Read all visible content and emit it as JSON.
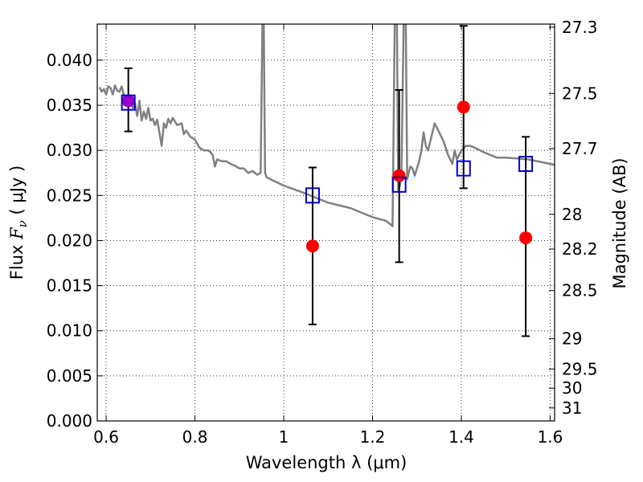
{
  "chart_data": {
    "type": "scatter",
    "xlabel": "Wavelength  λ (μm)",
    "ylabel": "Flux  F_ν  ( μJy )",
    "ylabel_parts": {
      "prefix": "Flux  ",
      "symbol": "F",
      "subscript": "ν",
      "suffix": "  ( μJy )"
    },
    "y2label": "Magnitude (AB)",
    "xlim": [
      0.58,
      1.61
    ],
    "ylim": [
      0.0,
      0.044
    ],
    "x_ticks": [
      0.6,
      0.8,
      1.0,
      1.2,
      1.4,
      1.6
    ],
    "x_tick_labels": [
      "0.6",
      "0.8",
      "1",
      "1.2",
      "1.4",
      "1.6"
    ],
    "y_ticks": [
      0.0,
      0.005,
      0.01,
      0.015,
      0.02,
      0.025,
      0.03,
      0.035,
      0.04
    ],
    "y_tick_labels": [
      "0.000",
      "0.005",
      "0.010",
      "0.015",
      "0.020",
      "0.025",
      "0.030",
      "0.035",
      "0.040"
    ],
    "y2_ticks": [
      27.3,
      27.5,
      27.7,
      28.0,
      28.2,
      28.5,
      29.0,
      29.5,
      30.0,
      31.0
    ],
    "y2_tick_labels": [
      "27.3",
      "27.5",
      "27.7",
      "28",
      "28.2",
      "28.5",
      "29",
      "29.5",
      "30",
      "31"
    ],
    "grid": true,
    "colors": {
      "spectrum": "#808080",
      "observed": "#ff0000",
      "model": "#0000cc",
      "overlap": "#9900cc",
      "errorbar": "#000000"
    },
    "series": [
      {
        "name": "spectrum",
        "kind": "line",
        "x": [
          0.585,
          0.59,
          0.595,
          0.6,
          0.605,
          0.61,
          0.615,
          0.62,
          0.625,
          0.63,
          0.635,
          0.64,
          0.645,
          0.65,
          0.655,
          0.66,
          0.665,
          0.67,
          0.675,
          0.68,
          0.685,
          0.69,
          0.695,
          0.7,
          0.705,
          0.71,
          0.715,
          0.72,
          0.725,
          0.73,
          0.735,
          0.74,
          0.745,
          0.75,
          0.76,
          0.77,
          0.775,
          0.78,
          0.79,
          0.8,
          0.81,
          0.82,
          0.83,
          0.835,
          0.84,
          0.845,
          0.85,
          0.86,
          0.87,
          0.88,
          0.89,
          0.9,
          0.91,
          0.92,
          0.93,
          0.94,
          0.948,
          0.952,
          0.955,
          0.958,
          0.962,
          0.97,
          1.0,
          1.05,
          1.1,
          1.15,
          1.17,
          1.2,
          1.23,
          1.24,
          1.245,
          1.25,
          1.255,
          1.258,
          1.262,
          1.265,
          1.27,
          1.275,
          1.278,
          1.285,
          1.29,
          1.295,
          1.3,
          1.305,
          1.31,
          1.315,
          1.32,
          1.325,
          1.33,
          1.34,
          1.35,
          1.36,
          1.37,
          1.38,
          1.385,
          1.39,
          1.4,
          1.41,
          1.42,
          1.43,
          1.45,
          1.48,
          1.5,
          1.55,
          1.6,
          1.61
        ],
        "y": [
          0.037,
          0.0365,
          0.0368,
          0.0362,
          0.0371,
          0.0369,
          0.0362,
          0.0372,
          0.0366,
          0.0365,
          0.0371,
          0.0362,
          0.035,
          0.0355,
          0.0358,
          0.0347,
          0.0352,
          0.0338,
          0.0355,
          0.0333,
          0.0343,
          0.0335,
          0.0347,
          0.0333,
          0.0335,
          0.0328,
          0.0334,
          0.032,
          0.0305,
          0.033,
          0.0325,
          0.0335,
          0.033,
          0.0336,
          0.0328,
          0.033,
          0.0318,
          0.0322,
          0.0315,
          0.0312,
          0.0303,
          0.03,
          0.03,
          0.0298,
          0.0295,
          0.0282,
          0.029,
          0.0288,
          0.0288,
          0.0285,
          0.0283,
          0.028,
          0.028,
          0.0275,
          0.0277,
          0.0273,
          0.0275,
          0.044,
          0.044,
          0.0275,
          0.027,
          0.0268,
          0.0261,
          0.0252,
          0.0242,
          0.0236,
          0.0232,
          0.0226,
          0.0222,
          0.0218,
          0.0216,
          0.044,
          0.044,
          0.0255,
          0.0262,
          0.0272,
          0.044,
          0.044,
          0.0268,
          0.0282,
          0.028,
          0.0272,
          0.028,
          0.0288,
          0.03,
          0.032,
          0.0305,
          0.03,
          0.031,
          0.033,
          0.032,
          0.031,
          0.0295,
          0.0285,
          0.03,
          0.029,
          0.03,
          0.0305,
          0.0305,
          0.0303,
          0.0298,
          0.0292,
          0.0292,
          0.029,
          0.0285,
          0.0284
        ]
      },
      {
        "name": "observed",
        "kind": "scatter-errorbar",
        "x": [
          0.65,
          1.065,
          1.26,
          1.405,
          1.545
        ],
        "y": [
          0.0355,
          0.0194,
          0.0272,
          0.0348,
          0.0203
        ],
        "yerr_low": [
          0.0321,
          0.0107,
          0.0176,
          0.0258,
          0.0094
        ],
        "yerr_high": [
          0.0391,
          0.0281,
          0.0367,
          0.0438,
          0.0315
        ]
      },
      {
        "name": "model",
        "kind": "scatter",
        "x": [
          0.65,
          1.065,
          1.26,
          1.405,
          1.545
        ],
        "y": [
          0.0353,
          0.025,
          0.0262,
          0.028,
          0.0285
        ]
      }
    ]
  }
}
